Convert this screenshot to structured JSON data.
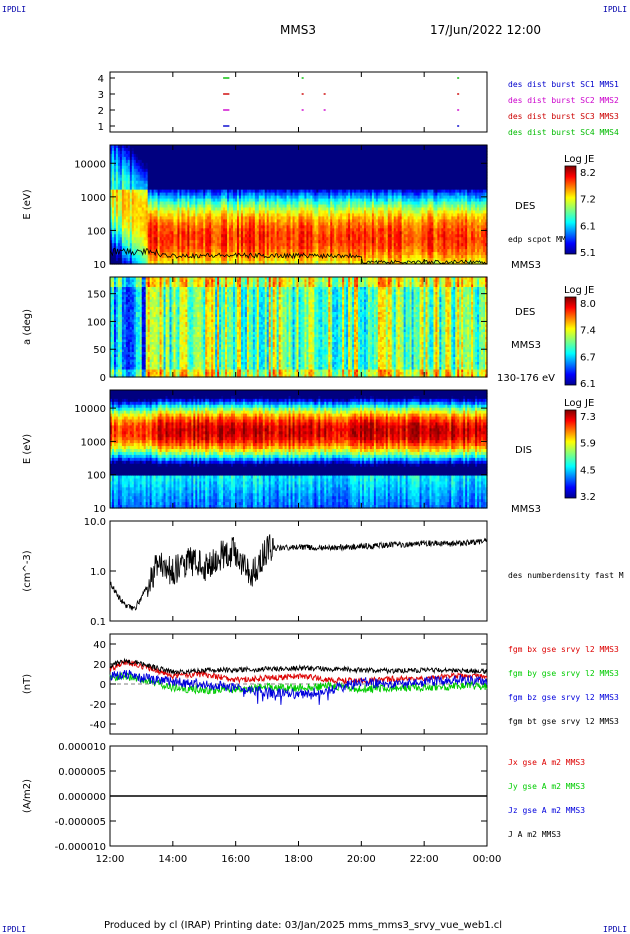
{
  "header": {
    "corner_tl": "IPDLI",
    "corner_tr": "IPDLI",
    "corner_bl": "IPDLI",
    "corner_br": "IPDLI",
    "spacecraft": "MMS3",
    "datetime": "17/Jun/2022 12:00"
  },
  "footer": {
    "text": "Produced by cl (IRAP)   Printing date: 03/Jan/2025   mms_mms3_srvy_vue_web1.cl"
  },
  "colors": {
    "c1": "#0000cc",
    "c2": "#cc00cc",
    "c3": "#cc0000",
    "c4": "#00bb00",
    "bx": "#dd0000",
    "by": "#00cc00",
    "bz": "#0000dd",
    "bt": "#000000"
  },
  "chart_data": [
    {
      "type": "scatter",
      "name": "burst-availability",
      "yticks": [
        "1",
        "2",
        "3",
        "4"
      ],
      "legend": [
        "des dist burst SC1 MMS1",
        "des dist burst SC2 MMS2",
        "des dist burst SC3 MMS3",
        "des dist burst SC4 MMS4"
      ],
      "segments": [
        {
          "sc": 4,
          "start": 15.6,
          "end": 15.8
        },
        {
          "sc": 4,
          "start": 18.1,
          "end": 18.12
        },
        {
          "sc": 4,
          "start": 23.05,
          "end": 23.1
        },
        {
          "sc": 3,
          "start": 15.6,
          "end": 15.8
        },
        {
          "sc": 3,
          "start": 18.1,
          "end": 18.13
        },
        {
          "sc": 3,
          "start": 18.8,
          "end": 18.82
        },
        {
          "sc": 3,
          "start": 23.05,
          "end": 23.1
        },
        {
          "sc": 2,
          "start": 15.6,
          "end": 15.8
        },
        {
          "sc": 2,
          "start": 18.1,
          "end": 18.13
        },
        {
          "sc": 2,
          "start": 18.8,
          "end": 18.82
        },
        {
          "sc": 2,
          "start": 23.05,
          "end": 23.1
        },
        {
          "sc": 1,
          "start": 15.6,
          "end": 15.8
        },
        {
          "sc": 1,
          "start": 23.05,
          "end": 23.1
        }
      ]
    },
    {
      "type": "heatmap",
      "name": "des-energy-spectrogram",
      "ylabel": "E (eV)",
      "ytick_labels": [
        "10",
        "100",
        "1000",
        "10000"
      ],
      "ytick_values": [
        10,
        100,
        1000,
        10000
      ],
      "ylim": [
        10,
        35000
      ],
      "scale": "log",
      "species": "DES",
      "sc_label": "MMS3",
      "overlay_label": "edp scpot MMS3",
      "colorbar": {
        "title": "Log JE",
        "ticks": [
          "8.2",
          "7.2",
          "6.1",
          "5.1"
        ],
        "range": [
          5.1,
          8.2
        ]
      },
      "peak_energy_eV": 60
    },
    {
      "type": "heatmap",
      "name": "des-pitch-angle",
      "ylabel": "a (deg)",
      "ytick_labels": [
        "0",
        "50",
        "100",
        "150"
      ],
      "ytick_values": [
        0,
        50,
        100,
        150
      ],
      "ylim": [
        0,
        180
      ],
      "species": "DES",
      "sc_label": "MMS3",
      "energy_band": "130-176 eV",
      "colorbar": {
        "title": "Log JE",
        "ticks": [
          "8.0",
          "7.4",
          "6.7",
          "6.1"
        ],
        "range": [
          6.1,
          8.0
        ]
      }
    },
    {
      "type": "heatmap",
      "name": "dis-energy-spectrogram",
      "ylabel": "E (eV)",
      "ytick_labels": [
        "10",
        "100",
        "1000",
        "10000"
      ],
      "ytick_values": [
        10,
        100,
        1000,
        10000
      ],
      "ylim": [
        10,
        35000
      ],
      "scale": "log",
      "species": "DIS",
      "sc_label": "MMS3",
      "colorbar": {
        "title": "Log JE",
        "ticks": [
          "7.3",
          "5.9",
          "4.5",
          "3.2"
        ],
        "range": [
          3.2,
          7.3
        ]
      },
      "peak_energy_eV": 2000
    },
    {
      "type": "line",
      "name": "density",
      "ylabel": "(cm^-3)",
      "ytick_labels": [
        "0.1",
        "1.0",
        "10.0"
      ],
      "ytick_values": [
        0.1,
        1,
        10
      ],
      "ylim": [
        0.1,
        10
      ],
      "scale": "log",
      "series": [
        {
          "name": "des numberdensity fast M",
          "x": [
            12.0,
            12.2,
            12.5,
            12.8,
            13.0,
            13.3,
            13.5,
            14.0,
            14.5,
            15.0,
            15.5,
            16.0,
            16.5,
            17.0,
            18.0,
            19.0,
            20.0,
            21.0,
            22.0,
            23.0,
            24.0
          ],
          "values": [
            0.6,
            0.35,
            0.2,
            0.18,
            0.3,
            0.6,
            1.5,
            1.0,
            1.6,
            1.2,
            2.0,
            2.5,
            0.8,
            2.8,
            3.0,
            2.9,
            3.1,
            3.3,
            3.6,
            3.5,
            4.0
          ]
        }
      ]
    },
    {
      "type": "line",
      "name": "magnetic-field",
      "ylabel": "(nT)",
      "ytick_labels": [
        "-40",
        "-20",
        "0",
        "20",
        "40"
      ],
      "ytick_values": [
        -40,
        -20,
        0,
        20,
        40
      ],
      "ylim": [
        -50,
        50
      ],
      "series": [
        {
          "name": "fgm bx gse srvy l2 MMS3",
          "x": [
            12,
            12.5,
            13,
            14,
            15,
            16,
            17,
            18,
            19,
            20,
            21,
            22,
            23,
            24
          ],
          "values": [
            15,
            22,
            18,
            8,
            10,
            4,
            6,
            8,
            4,
            3,
            5,
            6,
            8,
            7
          ]
        },
        {
          "name": "fgm by gse srvy l2 MMS3",
          "x": [
            12,
            12.5,
            13,
            14,
            15,
            16,
            17,
            18,
            19,
            20,
            21,
            22,
            23,
            24
          ],
          "values": [
            6,
            8,
            5,
            -4,
            -6,
            -5,
            -3,
            -4,
            -2,
            -5,
            -4,
            -3,
            -2,
            -2
          ]
        },
        {
          "name": "fgm bz gse srvy l2 MMS3",
          "x": [
            12,
            12.5,
            13,
            14,
            15,
            16,
            17,
            18,
            19,
            20,
            21,
            22,
            23,
            24
          ],
          "values": [
            8,
            10,
            6,
            2,
            0,
            -4,
            -8,
            -10,
            -6,
            2,
            0,
            2,
            4,
            3
          ]
        },
        {
          "name": "fgm bt gse srvy l2 MMS3",
          "x": [
            12,
            12.5,
            13,
            14,
            15,
            16,
            17,
            18,
            19,
            20,
            21,
            22,
            23,
            24
          ],
          "values": [
            18,
            24,
            20,
            12,
            14,
            14,
            15,
            16,
            15,
            14,
            13,
            14,
            13,
            13
          ]
        }
      ]
    },
    {
      "type": "line",
      "name": "current-density",
      "ylabel": "(A/m2)",
      "ytick_labels": [
        "-0.000010",
        "-0.000005",
        "0.000000",
        "0.000005",
        "0.000010"
      ],
      "ytick_values": [
        -1e-05,
        -5e-06,
        0,
        5e-06,
        1e-05
      ],
      "ylim": [
        -1e-05,
        1e-05
      ],
      "series": [
        {
          "name": "Jx gse A m2 MMS3",
          "x": [
            12,
            24
          ],
          "values": [
            0,
            0
          ]
        },
        {
          "name": "Jy gse A m2 MMS3",
          "x": [
            12,
            24
          ],
          "values": [
            0,
            0
          ]
        },
        {
          "name": "Jz gse A m2 MMS3",
          "x": [
            12,
            24
          ],
          "values": [
            0,
            0
          ]
        },
        {
          "name": "J A m2 MMS3",
          "x": [
            12,
            24
          ],
          "values": [
            0,
            0
          ]
        }
      ]
    }
  ],
  "xaxis": {
    "tick_labels": [
      "12:00",
      "14:00",
      "16:00",
      "18:00",
      "20:00",
      "22:00",
      "00:00"
    ],
    "tick_values": [
      12,
      14,
      16,
      18,
      20,
      22,
      24
    ],
    "range": [
      12,
      24
    ]
  }
}
